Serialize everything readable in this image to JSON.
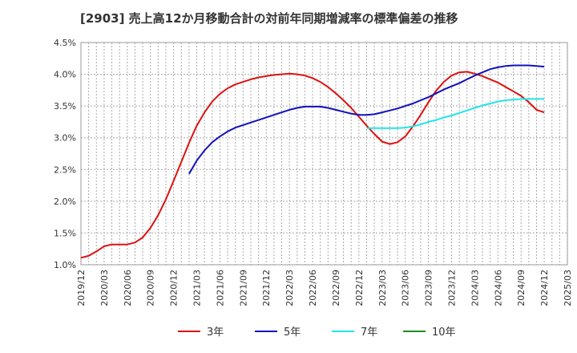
{
  "chart_data": {
    "type": "line",
    "title": "[2903]  売上高12か月移動合計の対前年同期増減率の標準偏差の推移",
    "xlabel": "",
    "ylabel": "",
    "ylim": [
      0.01,
      0.045
    ],
    "y_ticks": [
      "1.0%",
      "1.5%",
      "2.0%",
      "2.5%",
      "3.0%",
      "3.5%",
      "4.0%",
      "4.5%"
    ],
    "x_ticks": [
      "2019/12",
      "2020/03",
      "2020/06",
      "2020/09",
      "2020/12",
      "2021/03",
      "2021/06",
      "2021/09",
      "2021/12",
      "2022/03",
      "2022/06",
      "2022/09",
      "2022/12",
      "2023/03",
      "2023/06",
      "2023/09",
      "2023/12",
      "2024/03",
      "2024/06",
      "2024/09",
      "2024/12",
      "2025/03"
    ],
    "grid": true,
    "legend_position": "bottom",
    "series": [
      {
        "name": "3年",
        "color": "#dd1111",
        "points": [
          [
            "2019/12",
            0.0111
          ],
          [
            "2020/01",
            0.0114
          ],
          [
            "2020/02",
            0.0121
          ],
          [
            "2020/03",
            0.0129
          ],
          [
            "2020/04",
            0.0132
          ],
          [
            "2020/05",
            0.0132
          ],
          [
            "2020/06",
            0.0132
          ],
          [
            "2020/07",
            0.0135
          ],
          [
            "2020/08",
            0.0143
          ],
          [
            "2020/09",
            0.0158
          ],
          [
            "2020/10",
            0.0178
          ],
          [
            "2020/11",
            0.0203
          ],
          [
            "2020/12",
            0.0232
          ],
          [
            "2021/01",
            0.0262
          ],
          [
            "2021/02",
            0.0292
          ],
          [
            "2021/03",
            0.0319
          ],
          [
            "2021/04",
            0.034
          ],
          [
            "2021/05",
            0.0357
          ],
          [
            "2021/06",
            0.0369
          ],
          [
            "2021/07",
            0.0378
          ],
          [
            "2021/08",
            0.0384
          ],
          [
            "2021/09",
            0.0388
          ],
          [
            "2021/10",
            0.0392
          ],
          [
            "2021/11",
            0.0395
          ],
          [
            "2021/12",
            0.0397
          ],
          [
            "2022/01",
            0.0399
          ],
          [
            "2022/02",
            0.04
          ],
          [
            "2022/03",
            0.0401
          ],
          [
            "2022/04",
            0.04
          ],
          [
            "2022/05",
            0.0398
          ],
          [
            "2022/06",
            0.0394
          ],
          [
            "2022/07",
            0.0388
          ],
          [
            "2022/08",
            0.038
          ],
          [
            "2022/09",
            0.037
          ],
          [
            "2022/10",
            0.0359
          ],
          [
            "2022/11",
            0.0347
          ],
          [
            "2022/12",
            0.0333
          ],
          [
            "2023/01",
            0.0319
          ],
          [
            "2023/02",
            0.0306
          ],
          [
            "2023/03",
            0.0294
          ],
          [
            "2023/04",
            0.029
          ],
          [
            "2023/05",
            0.0293
          ],
          [
            "2023/06",
            0.0302
          ],
          [
            "2023/07",
            0.0318
          ],
          [
            "2023/08",
            0.0336
          ],
          [
            "2023/09",
            0.0356
          ],
          [
            "2023/10",
            0.0374
          ],
          [
            "2023/11",
            0.0388
          ],
          [
            "2023/12",
            0.0398
          ],
          [
            "2024/01",
            0.0403
          ],
          [
            "2024/02",
            0.0404
          ],
          [
            "2024/03",
            0.0401
          ],
          [
            "2024/04",
            0.0397
          ],
          [
            "2024/05",
            0.0392
          ],
          [
            "2024/06",
            0.0387
          ],
          [
            "2024/07",
            0.038
          ],
          [
            "2024/08",
            0.0373
          ],
          [
            "2024/09",
            0.0366
          ],
          [
            "2024/10",
            0.0356
          ],
          [
            "2024/11",
            0.0344
          ],
          [
            "2024/12",
            0.034
          ]
        ]
      },
      {
        "name": "5年",
        "color": "#1111bb",
        "points": [
          [
            "2021/02",
            0.0243
          ],
          [
            "2021/03",
            0.0264
          ],
          [
            "2021/04",
            0.028
          ],
          [
            "2021/05",
            0.0293
          ],
          [
            "2021/06",
            0.0302
          ],
          [
            "2021/07",
            0.031
          ],
          [
            "2021/08",
            0.0316
          ],
          [
            "2021/09",
            0.032
          ],
          [
            "2021/10",
            0.0324
          ],
          [
            "2021/11",
            0.0328
          ],
          [
            "2021/12",
            0.0332
          ],
          [
            "2022/01",
            0.0336
          ],
          [
            "2022/02",
            0.034
          ],
          [
            "2022/03",
            0.0344
          ],
          [
            "2022/04",
            0.0347
          ],
          [
            "2022/05",
            0.0349
          ],
          [
            "2022/06",
            0.0349
          ],
          [
            "2022/07",
            0.0349
          ],
          [
            "2022/08",
            0.0347
          ],
          [
            "2022/09",
            0.0344
          ],
          [
            "2022/10",
            0.0341
          ],
          [
            "2022/11",
            0.0338
          ],
          [
            "2022/12",
            0.0336
          ],
          [
            "2023/01",
            0.0336
          ],
          [
            "2023/02",
            0.0337
          ],
          [
            "2023/03",
            0.034
          ],
          [
            "2023/04",
            0.0343
          ],
          [
            "2023/05",
            0.0346
          ],
          [
            "2023/06",
            0.035
          ],
          [
            "2023/07",
            0.0354
          ],
          [
            "2023/08",
            0.0359
          ],
          [
            "2023/09",
            0.0364
          ],
          [
            "2023/10",
            0.037
          ],
          [
            "2023/11",
            0.0376
          ],
          [
            "2023/12",
            0.0381
          ],
          [
            "2024/01",
            0.0386
          ],
          [
            "2024/02",
            0.0392
          ],
          [
            "2024/03",
            0.0398
          ],
          [
            "2024/04",
            0.0403
          ],
          [
            "2024/05",
            0.0408
          ],
          [
            "2024/06",
            0.0411
          ],
          [
            "2024/07",
            0.0413
          ],
          [
            "2024/08",
            0.0414
          ],
          [
            "2024/09",
            0.0414
          ],
          [
            "2024/10",
            0.0414
          ],
          [
            "2024/11",
            0.0413
          ],
          [
            "2024/12",
            0.0412
          ]
        ]
      },
      {
        "name": "7年",
        "color": "#22e5e5",
        "points": [
          [
            "2023/01",
            0.0315
          ],
          [
            "2023/02",
            0.0315
          ],
          [
            "2023/03",
            0.0315
          ],
          [
            "2023/04",
            0.0315
          ],
          [
            "2023/05",
            0.0315
          ],
          [
            "2023/06",
            0.0316
          ],
          [
            "2023/07",
            0.0318
          ],
          [
            "2023/08",
            0.0321
          ],
          [
            "2023/09",
            0.0325
          ],
          [
            "2023/10",
            0.0328
          ],
          [
            "2023/11",
            0.0332
          ],
          [
            "2023/12",
            0.0335
          ],
          [
            "2024/01",
            0.0339
          ],
          [
            "2024/02",
            0.0343
          ],
          [
            "2024/03",
            0.0347
          ],
          [
            "2024/04",
            0.0351
          ],
          [
            "2024/05",
            0.0354
          ],
          [
            "2024/06",
            0.0357
          ],
          [
            "2024/07",
            0.0359
          ],
          [
            "2024/08",
            0.036
          ],
          [
            "2024/09",
            0.0361
          ],
          [
            "2024/10",
            0.0361
          ],
          [
            "2024/11",
            0.0361
          ],
          [
            "2024/12",
            0.0361
          ]
        ]
      },
      {
        "name": "10年",
        "color": "#228b22",
        "points": []
      }
    ]
  }
}
